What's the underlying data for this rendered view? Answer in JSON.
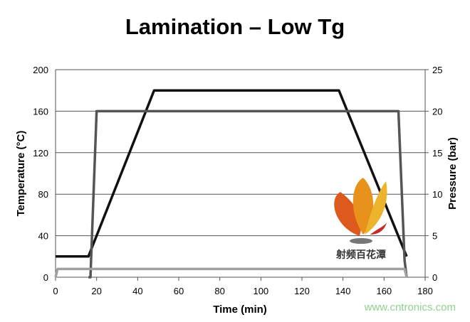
{
  "chart_data": {
    "type": "line",
    "title": "Lamination – Low Tg",
    "xlabel": "Time (min)",
    "ylabel": "Temperature (°C)",
    "y2label": "Pressure (bar)",
    "xlim": [
      0,
      180
    ],
    "ylim": [
      0,
      200
    ],
    "y2lim": [
      0,
      25
    ],
    "xticks": [
      0,
      20,
      40,
      60,
      80,
      100,
      120,
      140,
      160,
      180
    ],
    "yticks": [
      0,
      40,
      80,
      120,
      160,
      200
    ],
    "y2ticks": [
      0,
      5,
      10,
      15,
      20,
      25
    ],
    "grid": "horizontal",
    "legend": "none",
    "series": [
      {
        "axis": "left",
        "color": "#111111",
        "points": [
          [
            0,
            20
          ],
          [
            16,
            20
          ],
          [
            17,
            25
          ],
          [
            48,
            180
          ],
          [
            138,
            180
          ],
          [
            171,
            20
          ]
        ]
      },
      {
        "axis": "right",
        "color": "#555555",
        "points": [
          [
            16,
            0
          ],
          [
            17,
            0
          ],
          [
            20,
            20
          ],
          [
            167,
            20
          ],
          [
            170,
            2
          ],
          [
            171,
            0
          ]
        ]
      },
      {
        "axis": "right",
        "color": "#a0a0a0",
        "points": [
          [
            0,
            0
          ],
          [
            1,
            1
          ],
          [
            170,
            1
          ],
          [
            171,
            0
          ]
        ]
      }
    ]
  },
  "watermark": {
    "logo_text": "射频百花潭",
    "url": "www.cntronics.com"
  }
}
